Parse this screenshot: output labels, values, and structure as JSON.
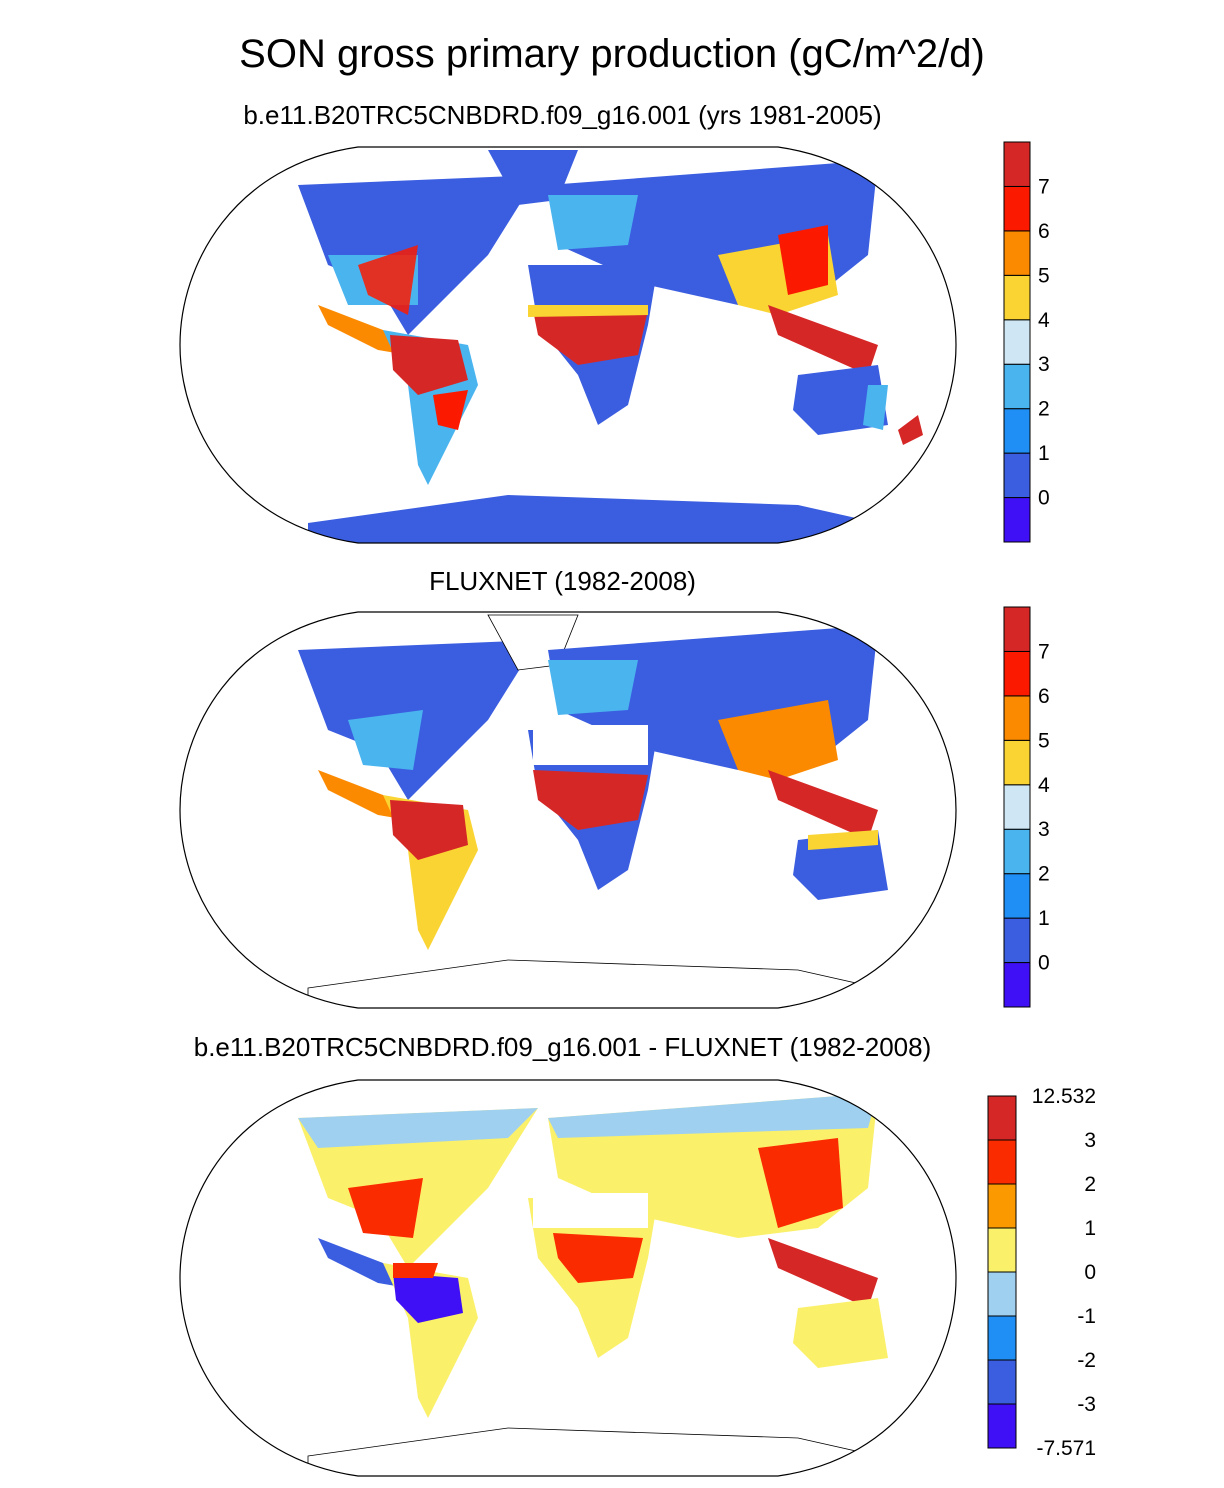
{
  "title": "SON gross primary production (gC/m^2/d)",
  "panels": [
    {
      "subtitle": "b.e11.B20TRC5CNBDRD.f09_g16.001 (yrs 1981-2005)",
      "colorbar": {
        "colors": [
          "#3f10f6",
          "#3b5ee0",
          "#1f8ff5",
          "#4ab4ef",
          "#cfe6f4",
          "#fad433",
          "#fb8a00",
          "#fb1a00",
          "#d62727"
        ],
        "labels": [
          "0",
          "1",
          "2",
          "3",
          "4",
          "5",
          "6",
          "7"
        ]
      }
    },
    {
      "subtitle": "FLUXNET (1982-2008)",
      "colorbar": {
        "colors": [
          "#3f10f6",
          "#3b5ee0",
          "#1f8ff5",
          "#4ab4ef",
          "#cfe6f4",
          "#fad433",
          "#fb8a00",
          "#fb1a00",
          "#d62727"
        ],
        "labels": [
          "0",
          "1",
          "2",
          "3",
          "4",
          "5",
          "6",
          "7"
        ]
      }
    },
    {
      "subtitle": "b.e11.B20TRC5CNBDRD.f09_g16.001 - FLUXNET (1982-2008)",
      "colorbar": {
        "colors": [
          "#3f10f6",
          "#3b5ee0",
          "#1f8ff5",
          "#9fd0ef",
          "#fbf06a",
          "#fb9a00",
          "#fb2b00",
          "#d62727"
        ],
        "labels": [
          "-7.571",
          "-3",
          "-2",
          "-1",
          "0",
          "1",
          "2",
          "3",
          "12.532"
        ]
      }
    }
  ]
}
